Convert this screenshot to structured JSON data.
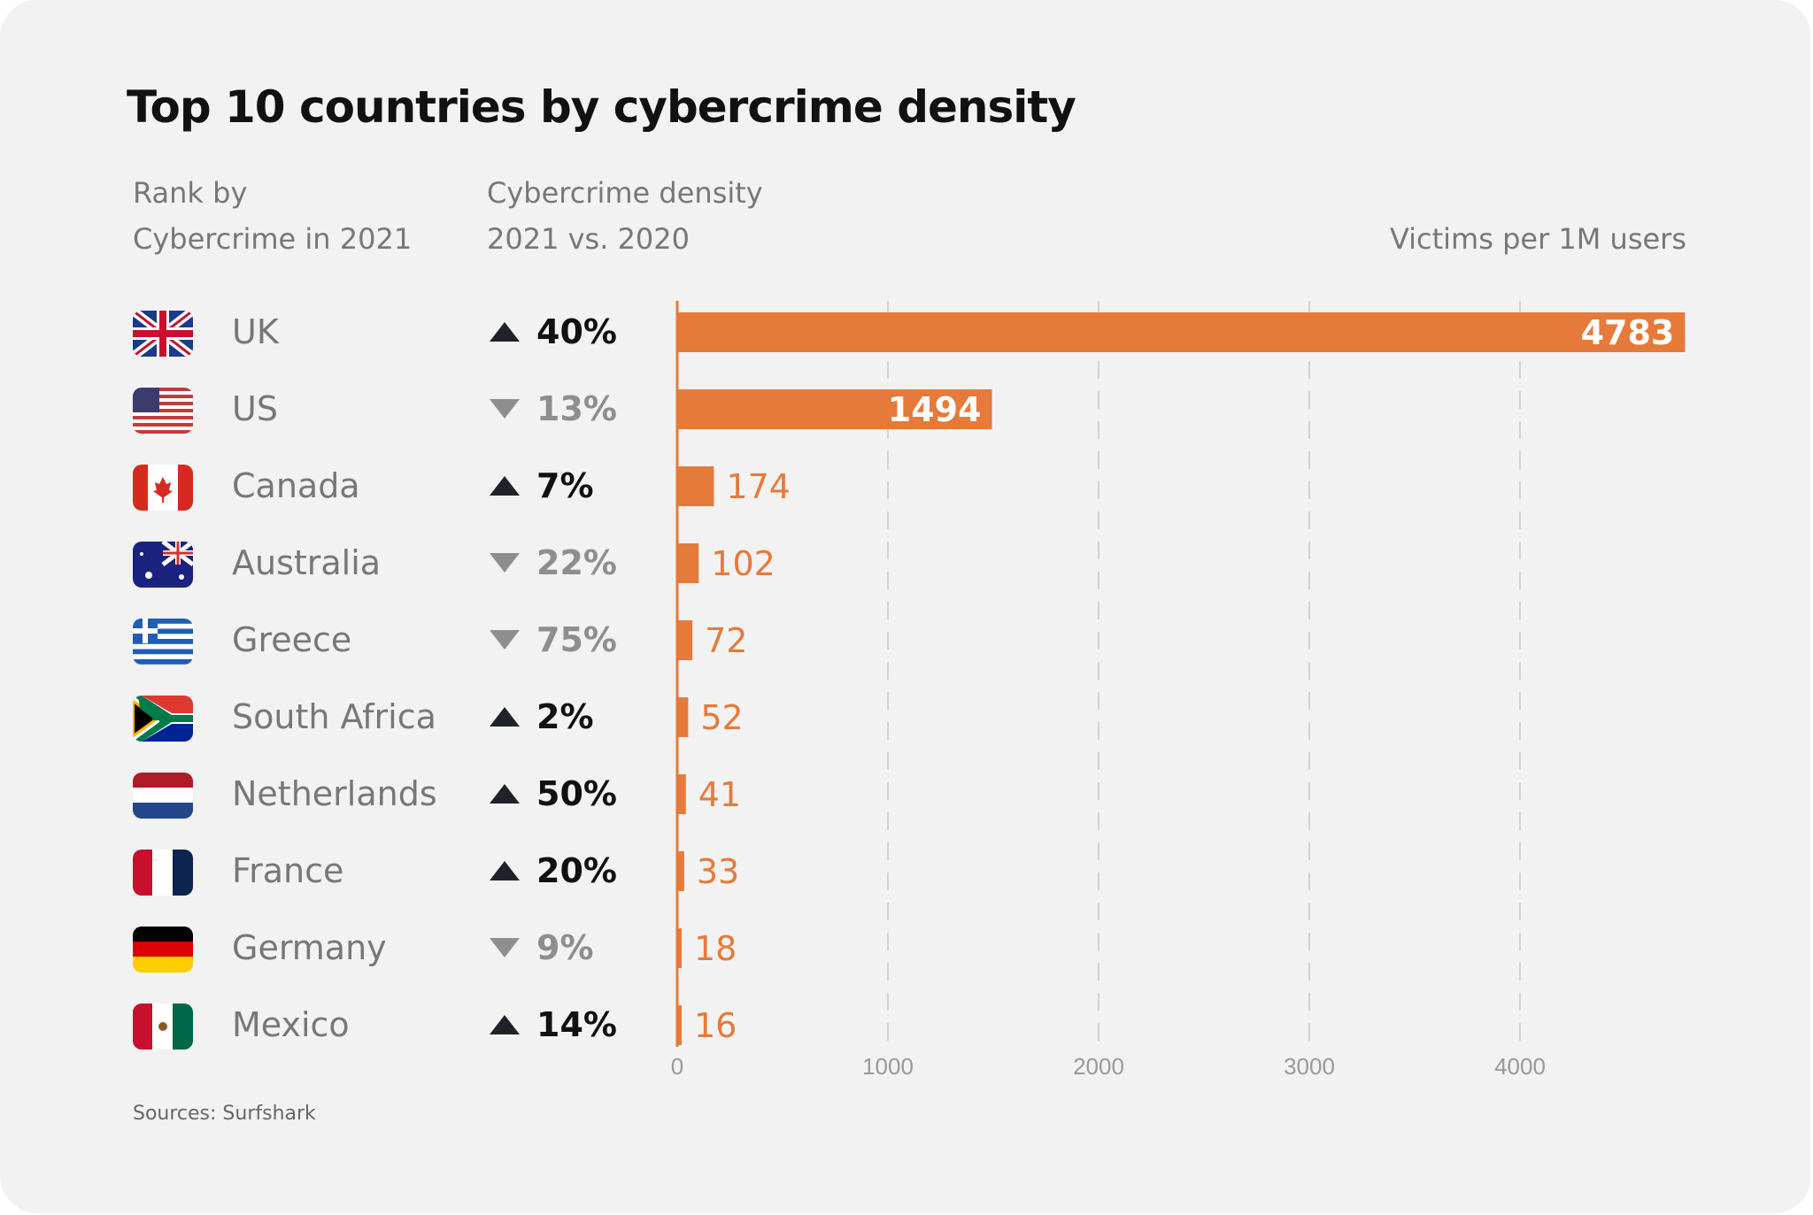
{
  "title": "Top 10 countries by cybercrime density",
  "headers": {
    "rank_line1": "Rank by",
    "rank_line2": "Cybercrime in 2021",
    "density_line1": "Cybercrime density",
    "density_line2": "2021 vs. 2020",
    "unit": "Victims per 1M users"
  },
  "source": "Sources: Surfshark",
  "colors": {
    "bar": "#e57a3a",
    "up": "#1f2329",
    "down": "#8e8e8e"
  },
  "rows": [
    {
      "country": "UK",
      "flag": "uk-flag-icon",
      "direction": "up",
      "change": "40%"
    },
    {
      "country": "US",
      "flag": "us-flag-icon",
      "direction": "down",
      "change": "13%"
    },
    {
      "country": "Canada",
      "flag": "canada-flag-icon",
      "direction": "up",
      "change": "7%"
    },
    {
      "country": "Australia",
      "flag": "australia-flag-icon",
      "direction": "down",
      "change": "22%"
    },
    {
      "country": "Greece",
      "flag": "greece-flag-icon",
      "direction": "down",
      "change": "75%"
    },
    {
      "country": "South Africa",
      "flag": "south-africa-flag-icon",
      "direction": "up",
      "change": "2%"
    },
    {
      "country": "Netherlands",
      "flag": "netherlands-flag-icon",
      "direction": "up",
      "change": "50%"
    },
    {
      "country": "France",
      "flag": "france-flag-icon",
      "direction": "up",
      "change": "20%"
    },
    {
      "country": "Germany",
      "flag": "germany-flag-icon",
      "direction": "down",
      "change": "9%"
    },
    {
      "country": "Mexico",
      "flag": "mexico-flag-icon",
      "direction": "up",
      "change": "14%"
    }
  ],
  "chart_data": {
    "type": "bar",
    "orientation": "horizontal",
    "categories": [
      "UK",
      "US",
      "Canada",
      "Australia",
      "Greece",
      "South Africa",
      "Netherlands",
      "France",
      "Germany",
      "Mexico"
    ],
    "values": [
      4783,
      1494,
      174,
      102,
      72,
      52,
      41,
      33,
      18,
      16
    ],
    "title": "Top 10 countries by cybercrime density",
    "xlabel": "Victims per 1M users",
    "xlim": [
      0,
      4800
    ],
    "xticks": [
      "0",
      "1000",
      "2000",
      "3000",
      "4000"
    ],
    "grid": true
  }
}
